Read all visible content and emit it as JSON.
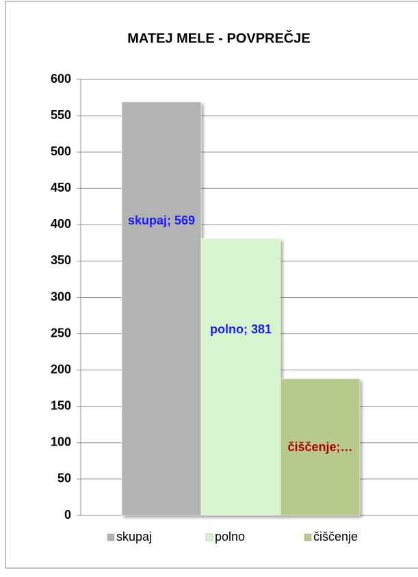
{
  "chart_data": {
    "type": "bar",
    "title": "MATEJ MELE - POVPREČJE",
    "series": [
      {
        "name": "skupaj",
        "color": "#b3b3b3",
        "values": [
          569
        ],
        "value_labels": [
          "skupaj; 569"
        ],
        "label_color": "#1a1aff"
      },
      {
        "name": "polno",
        "color": "#d6f5cf",
        "values": [
          381
        ],
        "value_labels": [
          "polno; 381"
        ],
        "label_color": "#1a1aff"
      },
      {
        "name": "čiščenje",
        "color": "#b8c98c",
        "values": [
          188
        ],
        "value_labels": [
          "čiščenje;…"
        ],
        "label_color": "#b00000"
      }
    ],
    "ylim": [
      0,
      600
    ],
    "yticks": [
      0,
      50,
      100,
      150,
      200,
      250,
      300,
      350,
      400,
      450,
      500,
      550,
      600
    ],
    "grid": true,
    "legend": "bottom"
  }
}
